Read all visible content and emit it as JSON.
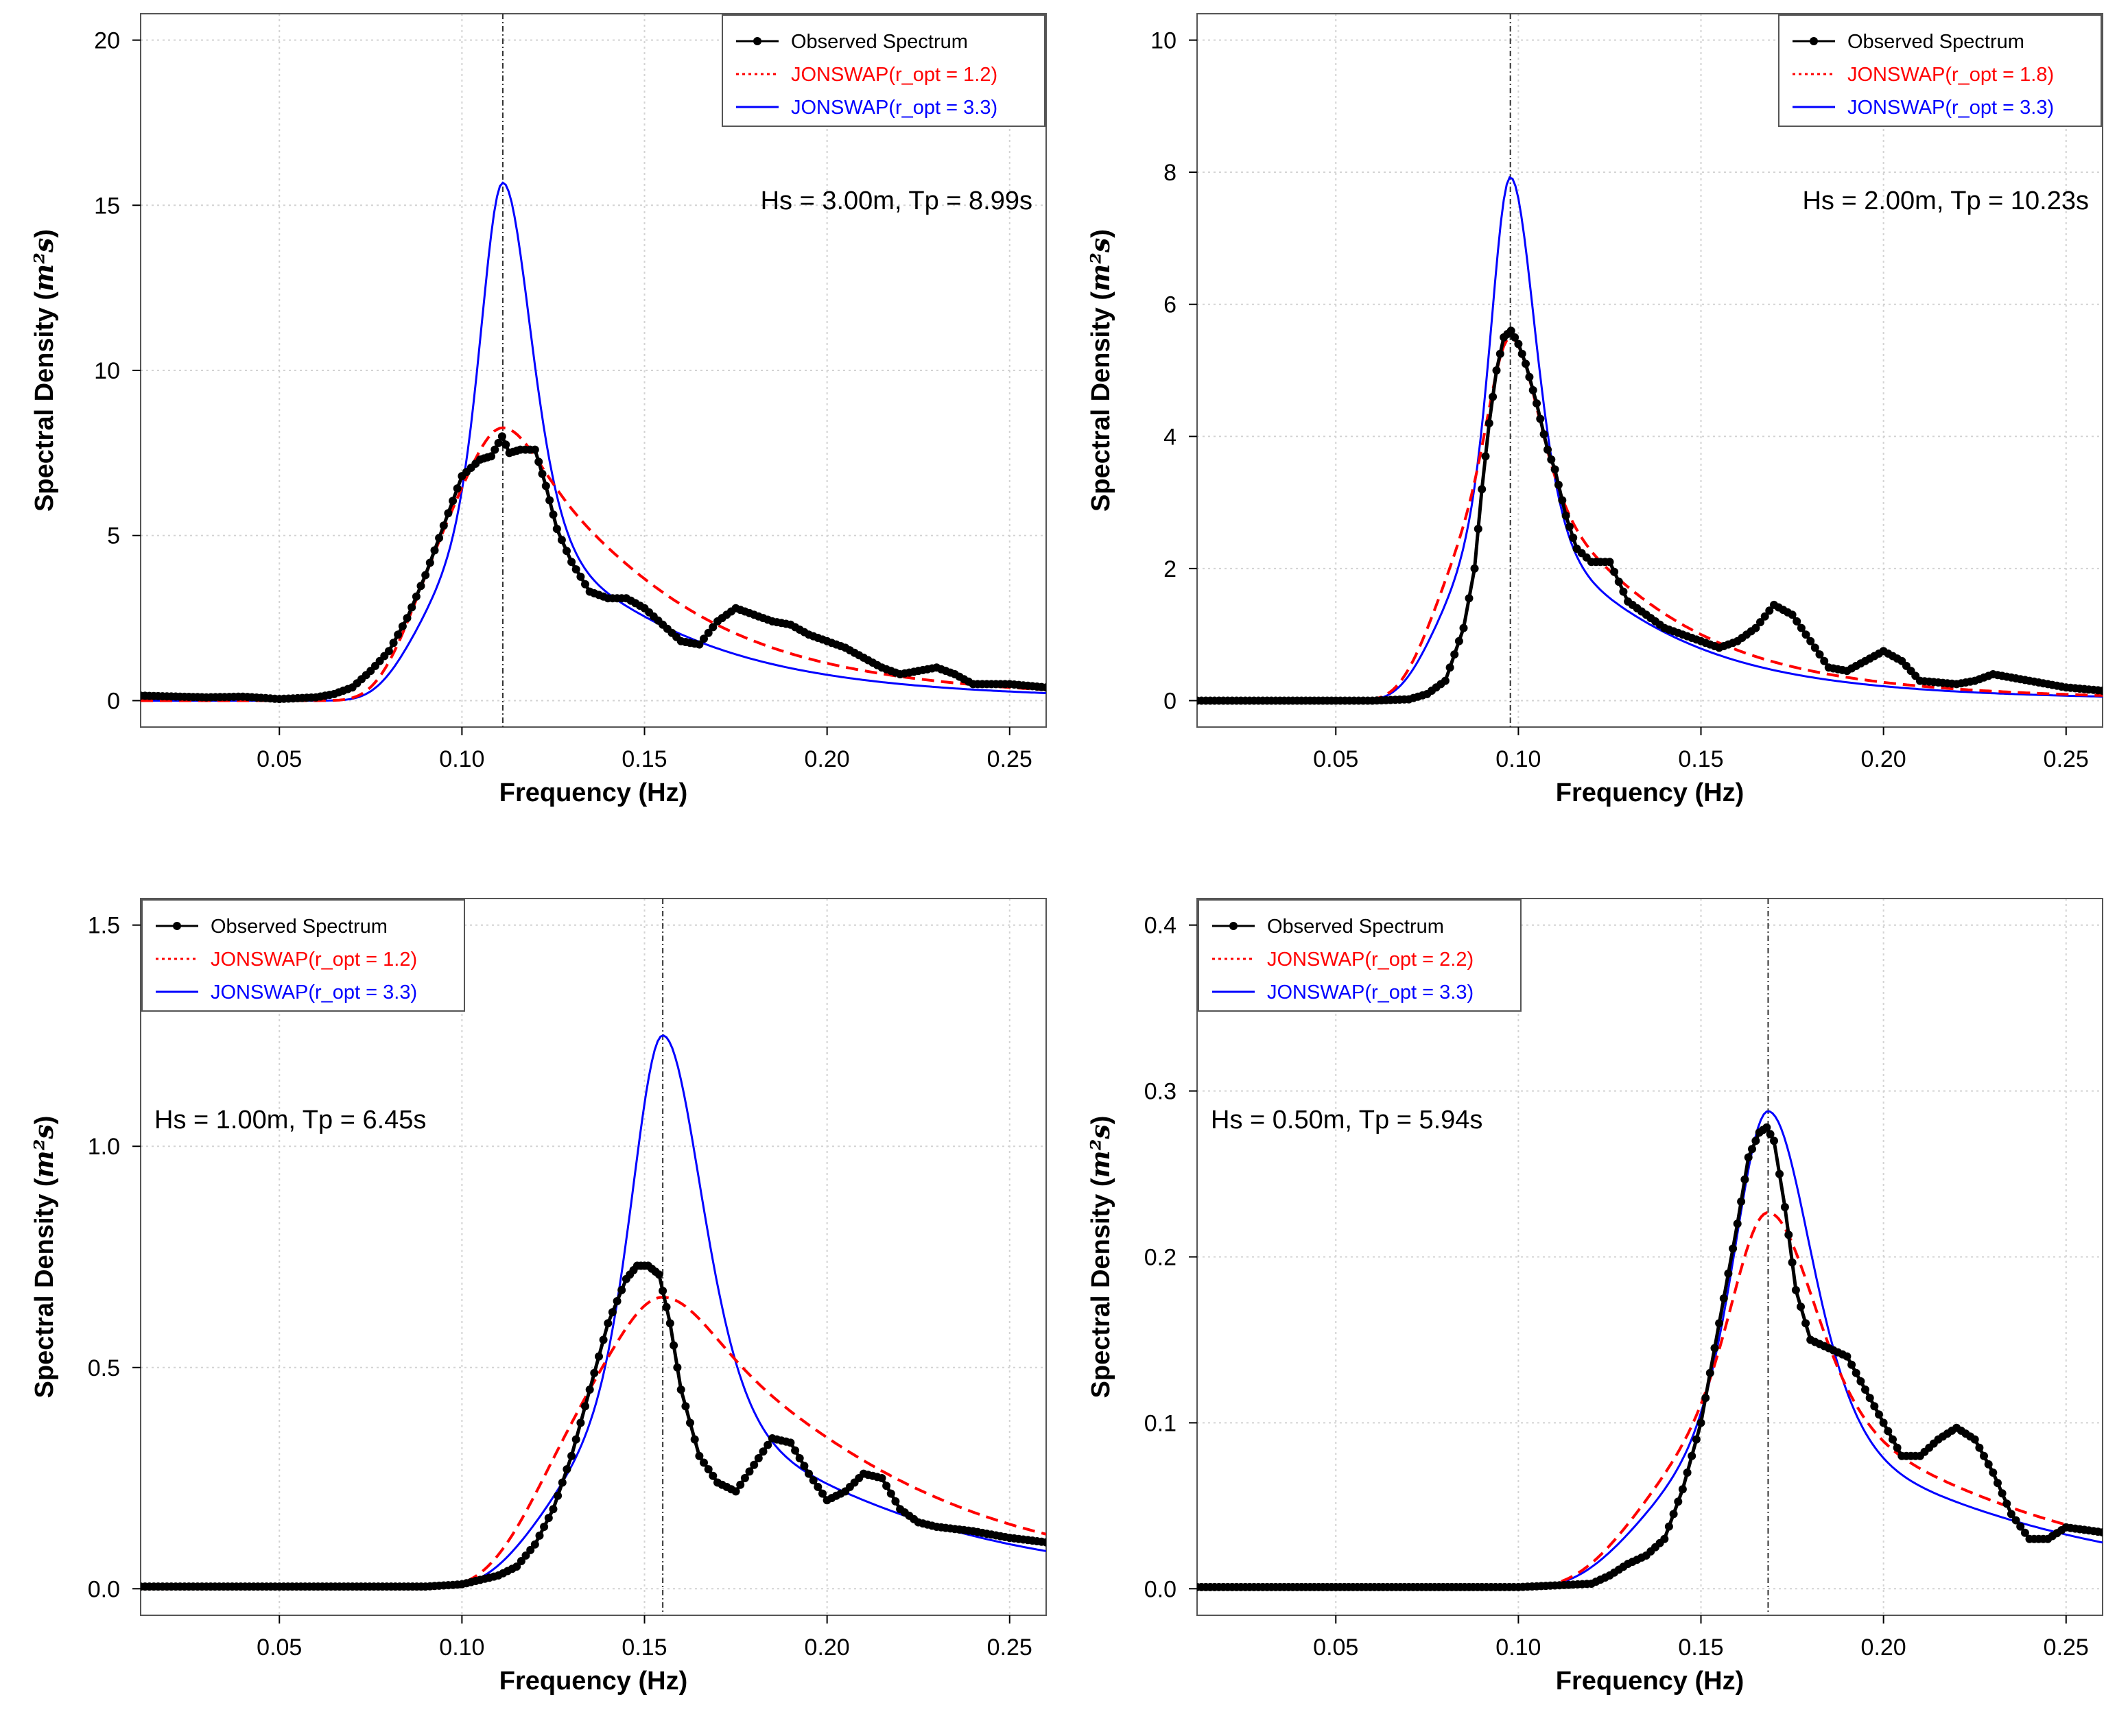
{
  "chart_data": [
    {
      "type": "line",
      "panel": "top-left",
      "xlabel": "Frequency (Hz)",
      "ylabel": "Spectral Density",
      "ylabel_unit": "m²s",
      "xlim": [
        0.012,
        0.26
      ],
      "ylim": [
        -0.8,
        20.8
      ],
      "xticks": [
        0.05,
        0.1,
        0.15,
        0.2,
        0.25
      ],
      "xtick_labels": [
        "0.05",
        "0.10",
        "0.15",
        "0.20",
        "0.25"
      ],
      "yticks": [
        0,
        5,
        10,
        15,
        20
      ],
      "ytick_labels": [
        "0",
        "5",
        "10",
        "15",
        "20"
      ],
      "grid": true,
      "legend_position": "top-right",
      "annotation": "Hs = 3.00m,  Tp = 8.99s",
      "peak_line_x": 0.1112,
      "series": [
        {
          "name": "Observed Spectrum",
          "style": "line-markers",
          "color": "#000000",
          "x": [
            0.012,
            0.03,
            0.04,
            0.05,
            0.06,
            0.065,
            0.07,
            0.075,
            0.08,
            0.085,
            0.09,
            0.095,
            0.1,
            0.105,
            0.108,
            0.111,
            0.113,
            0.116,
            0.12,
            0.123,
            0.126,
            0.13,
            0.135,
            0.14,
            0.145,
            0.15,
            0.155,
            0.16,
            0.165,
            0.17,
            0.175,
            0.18,
            0.185,
            0.19,
            0.195,
            0.2,
            0.205,
            0.21,
            0.215,
            0.22,
            0.225,
            0.23,
            0.235,
            0.24,
            0.25,
            0.26
          ],
          "y": [
            0.15,
            0.1,
            0.12,
            0.05,
            0.1,
            0.2,
            0.4,
            0.9,
            1.5,
            2.5,
            3.8,
            5.3,
            6.8,
            7.3,
            7.4,
            8.0,
            7.5,
            7.6,
            7.6,
            6.5,
            5.2,
            4.2,
            3.3,
            3.1,
            3.1,
            2.8,
            2.3,
            1.8,
            1.7,
            2.4,
            2.8,
            2.6,
            2.4,
            2.3,
            2.0,
            1.8,
            1.6,
            1.3,
            1.0,
            0.8,
            0.9,
            1.0,
            0.8,
            0.5,
            0.5,
            0.4
          ]
        },
        {
          "name": "JONSWAP(r_opt = 1.2)",
          "style": "dashed",
          "color": "#ff0000",
          "gamma": 1.2,
          "hs": 3.0,
          "fp": 0.1112
        },
        {
          "name": "JONSWAP(r_opt = 3.3)",
          "style": "solid",
          "color": "#0000ff",
          "gamma": 3.3,
          "hs": 3.0,
          "fp": 0.1112
        }
      ]
    },
    {
      "type": "line",
      "panel": "top-right",
      "xlabel": "Frequency (Hz)",
      "ylabel": "Spectral Density",
      "ylabel_unit": "m²s",
      "xlim": [
        0.012,
        0.26
      ],
      "ylim": [
        -0.4,
        10.4
      ],
      "xticks": [
        0.05,
        0.1,
        0.15,
        0.2,
        0.25
      ],
      "xtick_labels": [
        "0.05",
        "0.10",
        "0.15",
        "0.20",
        "0.25"
      ],
      "yticks": [
        0,
        2,
        4,
        6,
        8,
        10
      ],
      "ytick_labels": [
        "0",
        "2",
        "4",
        "6",
        "8",
        "10"
      ],
      "grid": true,
      "legend_position": "top-right",
      "annotation": "Hs = 2.00m,  Tp = 10.23s",
      "peak_line_x": 0.0978,
      "series": [
        {
          "name": "Observed Spectrum",
          "style": "line-markers",
          "color": "#000000",
          "x": [
            0.012,
            0.03,
            0.05,
            0.06,
            0.07,
            0.075,
            0.08,
            0.085,
            0.088,
            0.09,
            0.092,
            0.094,
            0.096,
            0.098,
            0.1,
            0.102,
            0.105,
            0.108,
            0.11,
            0.113,
            0.116,
            0.12,
            0.125,
            0.13,
            0.135,
            0.14,
            0.145,
            0.15,
            0.155,
            0.16,
            0.165,
            0.17,
            0.175,
            0.18,
            0.185,
            0.19,
            0.195,
            0.2,
            0.205,
            0.21,
            0.22,
            0.225,
            0.23,
            0.235,
            0.24,
            0.25,
            0.26
          ],
          "y": [
            0,
            0,
            0,
            0,
            0.02,
            0.1,
            0.3,
            1.1,
            2.0,
            3.2,
            4.2,
            5.0,
            5.5,
            5.6,
            5.4,
            5.1,
            4.5,
            3.8,
            3.5,
            2.8,
            2.3,
            2.1,
            2.1,
            1.5,
            1.3,
            1.1,
            1.0,
            0.9,
            0.8,
            0.9,
            1.1,
            1.45,
            1.3,
            0.9,
            0.5,
            0.45,
            0.6,
            0.75,
            0.6,
            0.3,
            0.25,
            0.3,
            0.4,
            0.35,
            0.3,
            0.2,
            0.15
          ]
        },
        {
          "name": "JONSWAP(r_opt = 1.8)",
          "style": "dashed",
          "color": "#ff0000",
          "gamma": 1.8,
          "hs": 2.0,
          "fp": 0.0978
        },
        {
          "name": "JONSWAP(r_opt = 3.3)",
          "style": "solid",
          "color": "#0000ff",
          "gamma": 3.3,
          "hs": 2.0,
          "fp": 0.0978
        }
      ]
    },
    {
      "type": "line",
      "panel": "bottom-left",
      "xlabel": "Frequency (Hz)",
      "ylabel": "Spectral Density",
      "ylabel_unit": "m²s",
      "xlim": [
        0.012,
        0.26
      ],
      "ylim": [
        -0.06,
        1.56
      ],
      "xticks": [
        0.05,
        0.1,
        0.15,
        0.2,
        0.25
      ],
      "xtick_labels": [
        "0.05",
        "0.10",
        "0.15",
        "0.20",
        "0.25"
      ],
      "yticks": [
        0.0,
        0.5,
        1.0,
        1.5
      ],
      "ytick_labels": [
        "0.0",
        "0.5",
        "1.0",
        "1.5"
      ],
      "grid": true,
      "legend_position": "top-left",
      "annotation": "Hs = 1.00m,  Tp = 6.45s",
      "peak_line_x": 0.155,
      "series": [
        {
          "name": "Observed Spectrum",
          "style": "line-markers",
          "color": "#000000",
          "x": [
            0.012,
            0.03,
            0.05,
            0.07,
            0.09,
            0.1,
            0.105,
            0.11,
            0.115,
            0.12,
            0.125,
            0.13,
            0.135,
            0.14,
            0.145,
            0.148,
            0.151,
            0.154,
            0.157,
            0.16,
            0.165,
            0.17,
            0.175,
            0.18,
            0.185,
            0.19,
            0.195,
            0.2,
            0.205,
            0.21,
            0.215,
            0.22,
            0.225,
            0.23,
            0.24,
            0.25,
            0.26
          ],
          "y": [
            0.005,
            0.005,
            0.005,
            0.005,
            0.005,
            0.01,
            0.02,
            0.03,
            0.05,
            0.1,
            0.18,
            0.3,
            0.45,
            0.6,
            0.7,
            0.73,
            0.73,
            0.71,
            0.6,
            0.45,
            0.3,
            0.24,
            0.22,
            0.28,
            0.34,
            0.33,
            0.26,
            0.2,
            0.22,
            0.26,
            0.25,
            0.18,
            0.15,
            0.14,
            0.13,
            0.115,
            0.105
          ]
        },
        {
          "name": "JONSWAP(r_opt = 1.2)",
          "style": "dashed",
          "color": "#ff0000",
          "gamma": 1.2,
          "hs": 1.0,
          "fp": 0.155
        },
        {
          "name": "JONSWAP(r_opt = 3.3)",
          "style": "solid",
          "color": "#0000ff",
          "gamma": 3.3,
          "hs": 1.0,
          "fp": 0.155
        }
      ]
    },
    {
      "type": "line",
      "panel": "bottom-right",
      "xlabel": "Frequency (Hz)",
      "ylabel": "Spectral Density",
      "ylabel_unit": "m²s",
      "xlim": [
        0.012,
        0.26
      ],
      "ylim": [
        -0.016,
        0.416
      ],
      "xticks": [
        0.05,
        0.1,
        0.15,
        0.2,
        0.25
      ],
      "xtick_labels": [
        "0.05",
        "0.10",
        "0.15",
        "0.20",
        "0.25"
      ],
      "yticks": [
        0.0,
        0.1,
        0.2,
        0.3,
        0.4
      ],
      "ytick_labels": [
        "0.0",
        "0.1",
        "0.2",
        "0.3",
        "0.4"
      ],
      "grid": true,
      "legend_position": "top-left",
      "annotation": "Hs = 0.50m,  Tp = 5.94s",
      "peak_line_x": 0.1684,
      "series": [
        {
          "name": "Observed Spectrum",
          "style": "line-markers",
          "color": "#000000",
          "x": [
            0.012,
            0.03,
            0.05,
            0.07,
            0.09,
            0.1,
            0.11,
            0.12,
            0.125,
            0.13,
            0.135,
            0.14,
            0.145,
            0.15,
            0.155,
            0.16,
            0.163,
            0.166,
            0.168,
            0.17,
            0.173,
            0.176,
            0.18,
            0.185,
            0.19,
            0.195,
            0.2,
            0.205,
            0.21,
            0.215,
            0.22,
            0.225,
            0.23,
            0.235,
            0.24,
            0.245,
            0.25,
            0.26
          ],
          "y": [
            0.001,
            0.001,
            0.001,
            0.001,
            0.001,
            0.001,
            0.002,
            0.003,
            0.008,
            0.015,
            0.02,
            0.03,
            0.06,
            0.1,
            0.16,
            0.22,
            0.26,
            0.275,
            0.278,
            0.27,
            0.23,
            0.18,
            0.15,
            0.145,
            0.14,
            0.12,
            0.1,
            0.08,
            0.08,
            0.09,
            0.097,
            0.09,
            0.07,
            0.045,
            0.03,
            0.03,
            0.037,
            0.034
          ]
        },
        {
          "name": "JONSWAP(r_opt = 2.2)",
          "style": "dashed",
          "color": "#ff0000",
          "gamma": 2.2,
          "hs": 0.5,
          "fp": 0.1684
        },
        {
          "name": "JONSWAP(r_opt = 3.3)",
          "style": "solid",
          "color": "#0000ff",
          "gamma": 3.3,
          "hs": 0.5,
          "fp": 0.1684
        }
      ]
    }
  ]
}
